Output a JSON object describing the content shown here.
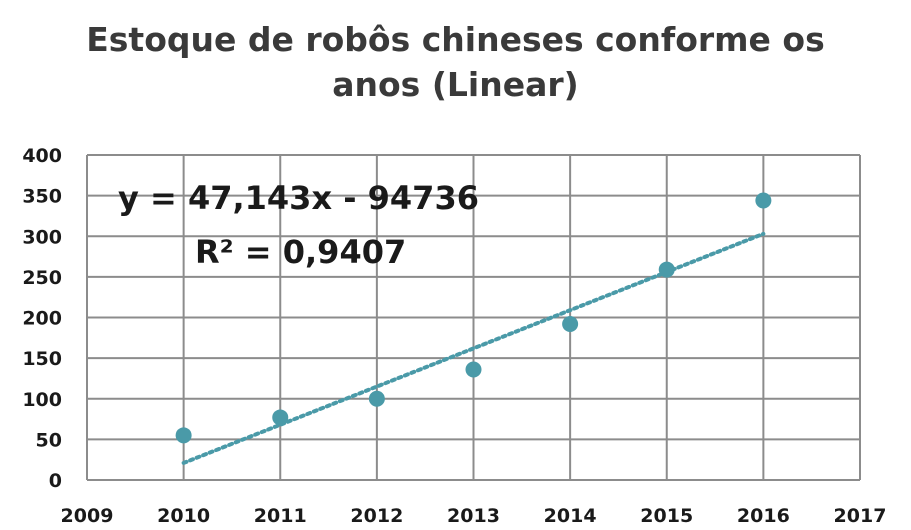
{
  "chart_data": {
    "type": "scatter",
    "title_line1": "Estoque de robôs chineses conforme os",
    "title_line2": "anos (Linear)",
    "x": [
      2010,
      2011,
      2012,
      2013,
      2014,
      2015,
      2016
    ],
    "y": [
      55,
      77,
      100,
      136,
      192,
      259,
      344
    ],
    "xlim": [
      2009,
      2017
    ],
    "ylim": [
      0,
      400
    ],
    "x_ticks": [
      "2009",
      "2010",
      "2011",
      "2012",
      "2013",
      "2014",
      "2015",
      "2016",
      "2017"
    ],
    "y_ticks": [
      "0",
      "50",
      "100",
      "150",
      "200",
      "250",
      "300",
      "350",
      "400"
    ],
    "grid": true,
    "trendline": {
      "type": "linear",
      "slope": 47.143,
      "intercept": -94736,
      "equation": "y = 47,143x - 94736",
      "r_squared": "R² = 0,9407",
      "x_range": [
        2010,
        2016
      ],
      "y_at_start": 21,
      "y_at_end": 303
    },
    "colors": {
      "marker": "#4a9aa8",
      "trendline": "#4a9aa8",
      "grid": "#8c8c8c",
      "text": "#1a1a1a"
    }
  }
}
